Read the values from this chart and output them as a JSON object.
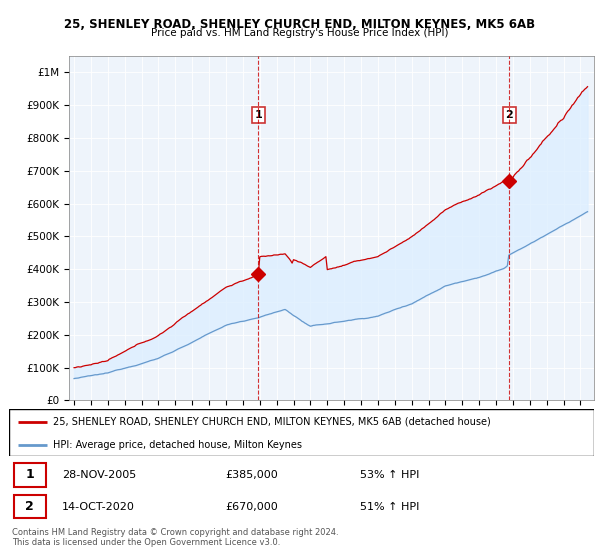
{
  "title1": "25, SHENLEY ROAD, SHENLEY CHURCH END, MILTON KEYNES, MK5 6AB",
  "title2": "Price paid vs. HM Land Registry's House Price Index (HPI)",
  "ylabel_ticks": [
    "£0",
    "£100K",
    "£200K",
    "£300K",
    "£400K",
    "£500K",
    "£600K",
    "£700K",
    "£800K",
    "£900K",
    "£1M"
  ],
  "ytick_values": [
    0,
    100000,
    200000,
    300000,
    400000,
    500000,
    600000,
    700000,
    800000,
    900000,
    1000000
  ],
  "ylim": [
    0,
    1050000
  ],
  "purchase1_date": 2005.91,
  "purchase1_price": 385000,
  "purchase1_label": "1",
  "purchase2_date": 2020.79,
  "purchase2_price": 670000,
  "purchase2_label": "2",
  "legend_line1": "25, SHENLEY ROAD, SHENLEY CHURCH END, MILTON KEYNES, MK5 6AB (detached house)",
  "legend_line2": "HPI: Average price, detached house, Milton Keynes",
  "info1_date": "28-NOV-2005",
  "info1_price": "£385,000",
  "info1_hpi": "53% ↑ HPI",
  "info2_date": "14-OCT-2020",
  "info2_price": "£670,000",
  "info2_hpi": "51% ↑ HPI",
  "footer": "Contains HM Land Registry data © Crown copyright and database right 2024.\nThis data is licensed under the Open Government Licence v3.0.",
  "red_color": "#cc0000",
  "blue_color": "#6699cc",
  "fill_color": "#ddeeff",
  "chart_bg": "#eef4fb",
  "vline_color": "#cc0000",
  "xlim_left": 1994.7,
  "xlim_right": 2025.8
}
